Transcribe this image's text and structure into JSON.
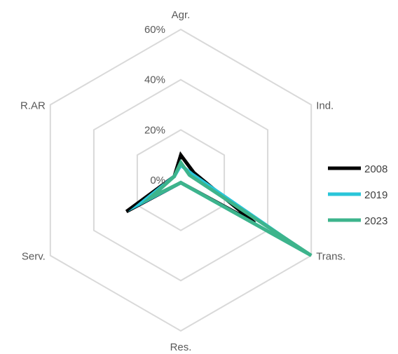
{
  "chart_data": {
    "type": "radar",
    "title": "",
    "categories": [
      "Agr.",
      "Ind.",
      "Trans.",
      "Res.",
      "Serv.",
      "R.AR"
    ],
    "rticks": [
      "0%",
      "20%",
      "40%",
      "60%"
    ],
    "rlim": [
      0,
      60
    ],
    "unit": "%",
    "grid": true,
    "legend_position": "right",
    "series": [
      {
        "name": "2008",
        "color": "#000000",
        "values": [
          10,
          6,
          34,
          1,
          25,
          3
        ]
      },
      {
        "name": "2019",
        "color": "#29C5D9",
        "values": [
          6,
          5,
          57,
          1,
          18,
          3
        ]
      },
      {
        "name": "2023",
        "color": "#3DB48C",
        "values": [
          7,
          4,
          60,
          1,
          14,
          3
        ]
      }
    ]
  }
}
